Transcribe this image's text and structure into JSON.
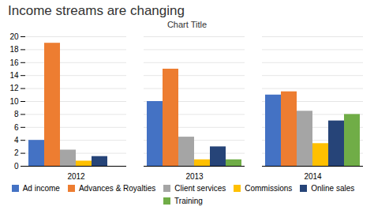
{
  "chart_data": {
    "type": "bar",
    "title": "Income streams are changing",
    "subtitle": "Chart Title",
    "categories": [
      "2012",
      "2013",
      "2014"
    ],
    "series": [
      {
        "name": "Ad income",
        "color": "#4472C4",
        "values": [
          4.0,
          10.0,
          11.0
        ]
      },
      {
        "name": "Advances & Royalties",
        "color": "#ED7D31",
        "values": [
          19.0,
          15.0,
          11.5
        ]
      },
      {
        "name": "Client services",
        "color": "#A5A5A5",
        "values": [
          2.5,
          4.5,
          8.5
        ]
      },
      {
        "name": "Commissions",
        "color": "#FFC000",
        "values": [
          0.8,
          1.0,
          3.5
        ]
      },
      {
        "name": "Online sales",
        "color": "#264478",
        "values": [
          1.5,
          3.0,
          7.0
        ]
      },
      {
        "name": "Training",
        "color": "#70AD47",
        "values": [
          0.0,
          1.0,
          8.0
        ]
      }
    ],
    "ylim": [
      0,
      20
    ],
    "yticks": [
      0,
      2,
      4,
      6,
      8,
      10,
      12,
      14,
      16,
      18,
      20
    ],
    "grid": true,
    "legend": "bottom"
  }
}
